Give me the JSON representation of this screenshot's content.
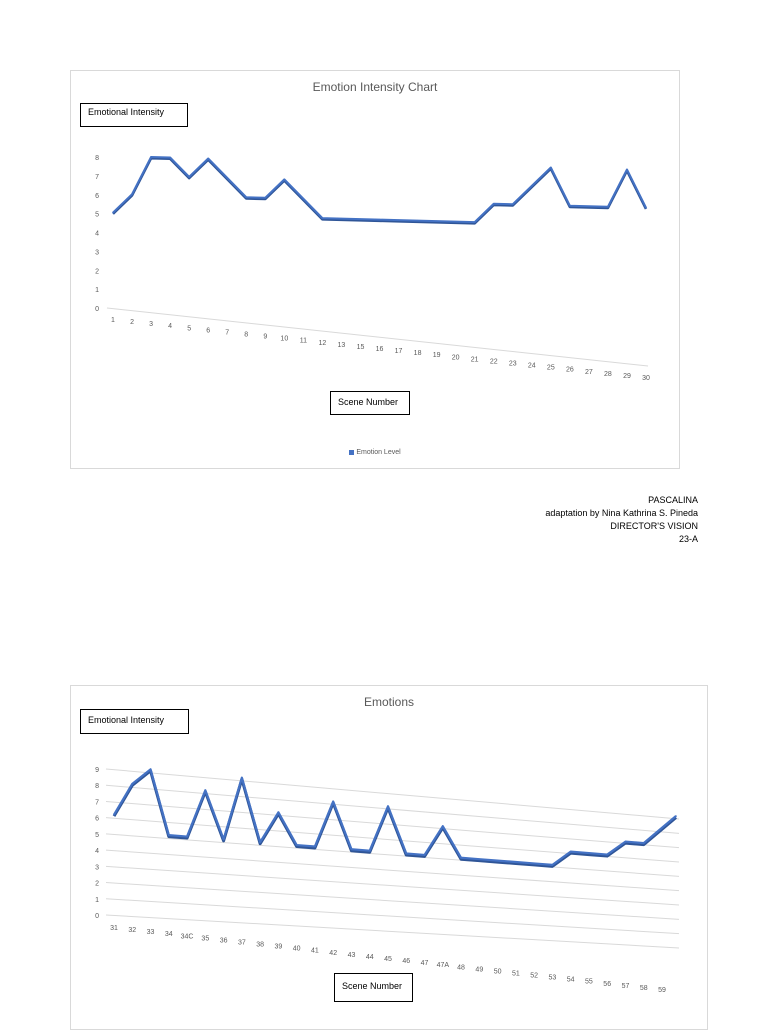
{
  "charts": [
    {
      "title": "Emotion Intensity Chart",
      "ylabel_box": "Emotional Intensity",
      "xlabel_box": "Scene Number",
      "legend": "Emotion Level"
    },
    {
      "title": "Emotions",
      "ylabel_box": "Emotional Intensity",
      "xlabel_box": "Scene Number",
      "legend": ""
    }
  ],
  "credits": {
    "line1": "PASCALINA",
    "line2": "adaptation by Nina Kathrina S. Pineda",
    "line3": "DIRECTOR'S VISION",
    "line4": "23-A"
  },
  "colors": {
    "line": "#4472c4",
    "line_dark": "#2f5597",
    "grid": "#d9d9d9",
    "text": "#595959"
  },
  "chart_data": [
    {
      "type": "line",
      "title": "Emotion Intensity Chart",
      "xlabel": "Scene Number",
      "ylabel": "Emotional Intensity",
      "ylim": [
        0,
        8
      ],
      "y_ticks": [
        "0",
        "1",
        "2",
        "3",
        "4",
        "5",
        "6",
        "7",
        "8"
      ],
      "grid": false,
      "legend_position": "bottom",
      "categories": [
        "1",
        "2",
        "3",
        "4",
        "5",
        "6",
        "7",
        "8",
        "9",
        "10",
        "11",
        "12",
        "13",
        "15",
        "16",
        "17",
        "18",
        "19",
        "20",
        "21",
        "22",
        "23",
        "24",
        "25",
        "26",
        "27",
        "28",
        "29",
        "30"
      ],
      "series": [
        {
          "name": "Emotion Level",
          "values": [
            5,
            6,
            8,
            8,
            7,
            8,
            7,
            6,
            6,
            7,
            6,
            5,
            5,
            5,
            5,
            5,
            5,
            5,
            5,
            5,
            6,
            6,
            7,
            8,
            6,
            6,
            6,
            8,
            6
          ]
        }
      ]
    },
    {
      "type": "line",
      "title": "Emotions",
      "xlabel": "Scene Number",
      "ylabel": "Emotional Intensity",
      "ylim": [
        0,
        9
      ],
      "y_ticks": [
        "0",
        "1",
        "2",
        "3",
        "4",
        "5",
        "6",
        "7",
        "8",
        "9"
      ],
      "grid": true,
      "categories": [
        "31",
        "32",
        "33",
        "34",
        "34C",
        "35",
        "36",
        "37",
        "38",
        "39",
        "40",
        "41",
        "42",
        "43",
        "44",
        "45",
        "46",
        "47",
        "47A",
        "48",
        "49",
        "50",
        "51",
        "52",
        "53",
        "54",
        "55",
        "56",
        "57",
        "58",
        "59"
      ],
      "series": [
        {
          "values": [
            6,
            8,
            9,
            5,
            5,
            8,
            5,
            9,
            5,
            7,
            5,
            5,
            8,
            5,
            5,
            8,
            5,
            5,
            7,
            5,
            5,
            5,
            5,
            5,
            5,
            6,
            6,
            6,
            7,
            7,
            9
          ]
        }
      ]
    }
  ]
}
